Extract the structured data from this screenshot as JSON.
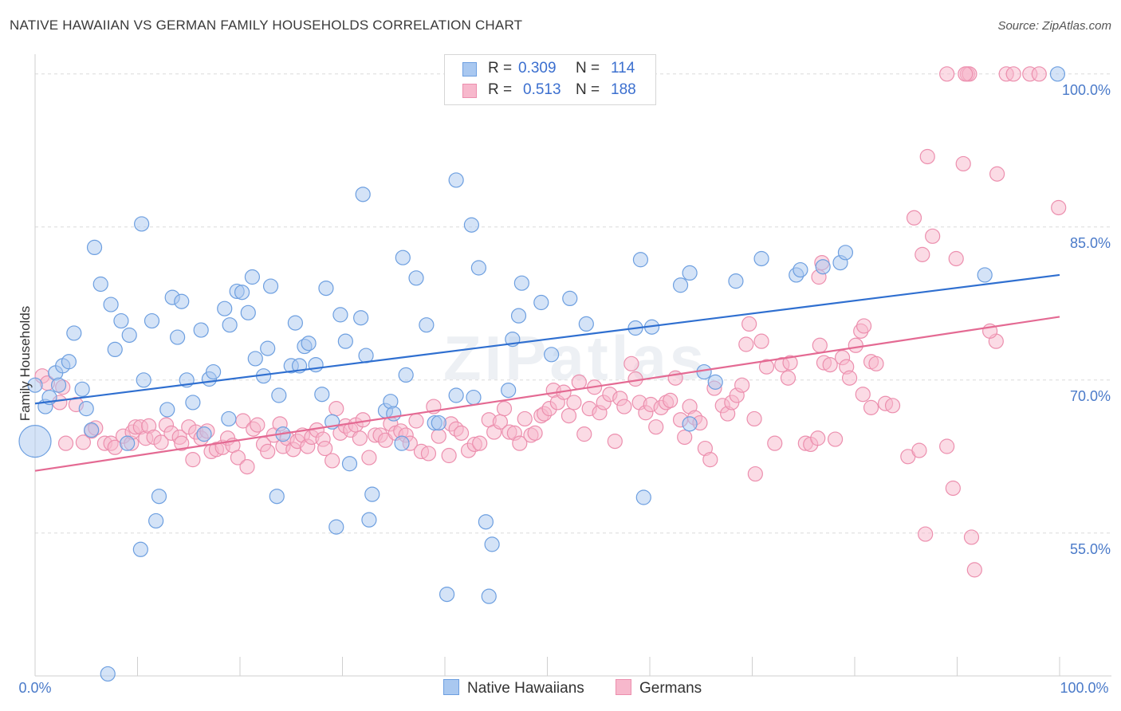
{
  "header": {
    "title": "NATIVE HAWAIIAN VS GERMAN FAMILY HOUSEHOLDS CORRELATION CHART",
    "source": "Source: ZipAtlas.com"
  },
  "watermark": "ZIPatlas",
  "legend": {
    "rows": [
      {
        "r_label": "R =",
        "r_value": "0.309",
        "n_label": "N =",
        "n_value": "114"
      },
      {
        "r_label": "R =",
        "r_value": "0.513",
        "n_label": "N =",
        "n_value": "188"
      }
    ]
  },
  "bottom_legend": {
    "items": [
      "Native Hawaiians",
      "Germans"
    ]
  },
  "colors": {
    "blue_fill": "#a9c8f0",
    "blue_stroke": "#6d9fe0",
    "blue_line": "#2f6fd0",
    "pink_fill": "#f7b8cc",
    "pink_stroke": "#ec8fae",
    "pink_line": "#e46a93",
    "tick": "#4a7ac9"
  },
  "chart_data": {
    "type": "scatter",
    "title": "NATIVE HAWAIIAN VS GERMAN FAMILY HOUSEHOLDS CORRELATION CHART",
    "xlabel": "",
    "ylabel": "Family Households",
    "xlim": [
      0,
      100
    ],
    "ylim": [
      41,
      101
    ],
    "x_tick_labels": [
      "0.0%",
      "100.0%"
    ],
    "y_ticks": [
      {
        "value": 55,
        "label": "55.0%"
      },
      {
        "value": 70,
        "label": "70.0%"
      },
      {
        "value": 85,
        "label": "85.0%"
      },
      {
        "value": 100,
        "label": "100.0%"
      }
    ],
    "grid": "horizontal dashed",
    "legend_position": "top-center",
    "series": [
      {
        "name": "Native Hawaiians",
        "R": 0.309,
        "N": 114,
        "trend": {
          "x0": 0,
          "y0": 67.7,
          "x1": 100,
          "y1": 80.3
        },
        "points": [
          [
            0,
            64
          ],
          [
            1,
            67.4
          ],
          [
            1.4,
            68.3
          ],
          [
            2,
            70.7
          ],
          [
            2.3,
            69.5
          ],
          [
            2.7,
            71.4
          ],
          [
            3.3,
            71.8
          ],
          [
            3.8,
            74.6
          ],
          [
            4.6,
            69.1
          ],
          [
            5,
            67.2
          ],
          [
            5.5,
            65.1
          ],
          [
            5.8,
            83
          ],
          [
            6.4,
            79.4
          ],
          [
            7.4,
            77.4
          ],
          [
            7.8,
            73
          ],
          [
            8.4,
            75.8
          ],
          [
            9,
            63.8
          ],
          [
            9.2,
            74.4
          ],
          [
            10.4,
            85.3
          ],
          [
            10.6,
            70
          ],
          [
            11.4,
            75.8
          ],
          [
            12.1,
            58.6
          ],
          [
            11.8,
            56.2
          ],
          [
            12.9,
            67.1
          ],
          [
            13.4,
            78.1
          ],
          [
            13.9,
            74.2
          ],
          [
            14.3,
            77.7
          ],
          [
            14.8,
            70
          ],
          [
            15.4,
            67.8
          ],
          [
            16.2,
            74.9
          ],
          [
            16.5,
            64.7
          ],
          [
            17,
            70.1
          ],
          [
            17.4,
            70.8
          ],
          [
            18.5,
            77
          ],
          [
            18.9,
            66.2
          ],
          [
            19,
            75.4
          ],
          [
            19.7,
            78.7
          ],
          [
            20.2,
            78.6
          ],
          [
            20.8,
            76.6
          ],
          [
            21.2,
            80.1
          ],
          [
            21.5,
            72.1
          ],
          [
            22.3,
            70.4
          ],
          [
            23,
            79.2
          ],
          [
            23.6,
            58.6
          ],
          [
            23.8,
            68.5
          ],
          [
            24.2,
            64.7
          ],
          [
            25,
            71.4
          ],
          [
            25.4,
            75.6
          ],
          [
            25.8,
            71.4
          ],
          [
            26.3,
            73.3
          ],
          [
            26.7,
            73.6
          ],
          [
            27.4,
            71.5
          ],
          [
            28,
            68.6
          ],
          [
            28.4,
            79
          ],
          [
            29,
            65.9
          ],
          [
            29.4,
            55.6
          ],
          [
            29.8,
            76.4
          ],
          [
            30.3,
            73.8
          ],
          [
            30.7,
            61.8
          ],
          [
            31.8,
            76.1
          ],
          [
            32,
            88.2
          ],
          [
            32.3,
            72.4
          ],
          [
            32.9,
            58.8
          ],
          [
            32.6,
            56.3
          ],
          [
            34.2,
            67
          ],
          [
            34.7,
            67.9
          ],
          [
            35,
            66.7
          ],
          [
            35.8,
            63.8
          ],
          [
            35.9,
            82
          ],
          [
            36.2,
            70.5
          ],
          [
            37.2,
            80
          ],
          [
            38.2,
            75.4
          ],
          [
            39,
            65.8
          ],
          [
            39.4,
            65.8
          ],
          [
            41.1,
            89.6
          ],
          [
            41.1,
            68.5
          ],
          [
            42.6,
            85.2
          ],
          [
            42.8,
            68.3
          ],
          [
            43.3,
            81
          ],
          [
            44,
            56.1
          ],
          [
            44.6,
            53.9
          ],
          [
            46.2,
            69
          ],
          [
            46.6,
            74
          ],
          [
            47.2,
            76.3
          ],
          [
            47.5,
            79.5
          ],
          [
            49.4,
            77.6
          ],
          [
            50.4,
            72.5
          ],
          [
            52.2,
            78
          ],
          [
            53.8,
            75.5
          ],
          [
            58.6,
            75.1
          ],
          [
            59.1,
            81.8
          ],
          [
            60.2,
            75.2
          ],
          [
            59.4,
            58.5
          ],
          [
            63,
            79.3
          ],
          [
            63.9,
            80.5
          ],
          [
            63.9,
            65.7
          ],
          [
            65.3,
            70.8
          ],
          [
            66.4,
            69.8
          ],
          [
            68.4,
            79.7
          ],
          [
            70.9,
            81.9
          ],
          [
            74.3,
            80.3
          ],
          [
            74.7,
            80.8
          ],
          [
            76.9,
            81.1
          ],
          [
            78.6,
            81.5
          ],
          [
            79.1,
            82.5
          ],
          [
            92.7,
            80.3
          ],
          [
            99.8,
            100
          ],
          [
            7.1,
            41.2
          ],
          [
            10.3,
            53.4
          ],
          [
            40.2,
            49
          ],
          [
            44.3,
            48.8
          ],
          [
            0,
            69.5
          ],
          [
            22.7,
            73.1
          ]
        ]
      },
      {
        "name": "Germans",
        "R": 0.513,
        "N": 188,
        "trend": {
          "x0": 0,
          "y0": 61.1,
          "x1": 100,
          "y1": 76.2
        },
        "points": [
          [
            0.7,
            70.4
          ],
          [
            1.2,
            69.7
          ],
          [
            2.4,
            67.8
          ],
          [
            2.7,
            69.3
          ],
          [
            3,
            63.8
          ],
          [
            4,
            67.6
          ],
          [
            4.7,
            63.9
          ],
          [
            5.5,
            65
          ],
          [
            5.9,
            65.3
          ],
          [
            6.8,
            63.8
          ],
          [
            7.4,
            63.8
          ],
          [
            7.8,
            63.4
          ],
          [
            8.6,
            64.5
          ],
          [
            9.4,
            63.8
          ],
          [
            9.5,
            64.9
          ],
          [
            9.8,
            65.4
          ],
          [
            10.3,
            65.4
          ],
          [
            10.8,
            64.3
          ],
          [
            11.1,
            65.5
          ],
          [
            11.6,
            64.4
          ],
          [
            12.3,
            63.9
          ],
          [
            12.8,
            65.6
          ],
          [
            13.3,
            64.8
          ],
          [
            14.1,
            64.4
          ],
          [
            14.3,
            63.8
          ],
          [
            15,
            65.4
          ],
          [
            15.4,
            62.2
          ],
          [
            15.7,
            64.9
          ],
          [
            16.2,
            64.3
          ],
          [
            16.8,
            65
          ],
          [
            17.2,
            63
          ],
          [
            17.7,
            63.2
          ],
          [
            18.3,
            63.4
          ],
          [
            18.8,
            64.3
          ],
          [
            19.3,
            63.6
          ],
          [
            19.8,
            62.4
          ],
          [
            20.3,
            66
          ],
          [
            20.7,
            61.5
          ],
          [
            21.3,
            65.2
          ],
          [
            21.7,
            65.6
          ],
          [
            22.3,
            63.7
          ],
          [
            22.7,
            63
          ],
          [
            23.3,
            64.6
          ],
          [
            23.9,
            65.7
          ],
          [
            24.2,
            63.5
          ],
          [
            24.6,
            64.3
          ],
          [
            25.2,
            63.2
          ],
          [
            25.6,
            64
          ],
          [
            26.1,
            64.6
          ],
          [
            26.6,
            63.5
          ],
          [
            27,
            64.4
          ],
          [
            27.5,
            65.1
          ],
          [
            28.1,
            64.2
          ],
          [
            28.3,
            63.3
          ],
          [
            29,
            62.1
          ],
          [
            29.4,
            67.2
          ],
          [
            29.8,
            64.8
          ],
          [
            30.3,
            65.5
          ],
          [
            30.8,
            65.1
          ],
          [
            31.3,
            65.6
          ],
          [
            31.7,
            64.3
          ],
          [
            32,
            66.1
          ],
          [
            32.6,
            62.4
          ],
          [
            33.2,
            64.6
          ],
          [
            33.7,
            64.6
          ],
          [
            34.2,
            64.1
          ],
          [
            34.7,
            65.7
          ],
          [
            35.2,
            64.8
          ],
          [
            35.7,
            65
          ],
          [
            36.2,
            64.6
          ],
          [
            36.6,
            63.8
          ],
          [
            37.2,
            66
          ],
          [
            37.7,
            63
          ],
          [
            38.4,
            62.8
          ],
          [
            38.9,
            67.4
          ],
          [
            39.4,
            64.5
          ],
          [
            40.4,
            62.6
          ],
          [
            40.6,
            65.7
          ],
          [
            41.1,
            65.2
          ],
          [
            41.6,
            64.8
          ],
          [
            42.3,
            63.1
          ],
          [
            42.9,
            63.7
          ],
          [
            43.4,
            63.8
          ],
          [
            44.3,
            66.1
          ],
          [
            44.8,
            64.9
          ],
          [
            45.4,
            65.9
          ],
          [
            45.8,
            67.2
          ],
          [
            46.3,
            64.9
          ],
          [
            46.8,
            64.8
          ],
          [
            47.3,
            63.8
          ],
          [
            47.8,
            66.2
          ],
          [
            48.4,
            64.6
          ],
          [
            48.8,
            64.8
          ],
          [
            49.4,
            66.5
          ],
          [
            49.7,
            66.7
          ],
          [
            50.2,
            67.2
          ],
          [
            50.6,
            69
          ],
          [
            51,
            67.8
          ],
          [
            51.6,
            68.8
          ],
          [
            52.1,
            66.5
          ],
          [
            52.6,
            67.8
          ],
          [
            53.1,
            69.8
          ],
          [
            53.6,
            64.7
          ],
          [
            54.1,
            67.2
          ],
          [
            54.6,
            69.3
          ],
          [
            55.1,
            66.8
          ],
          [
            55.5,
            67.8
          ],
          [
            56.1,
            68.6
          ],
          [
            56.6,
            64
          ],
          [
            57.1,
            68.2
          ],
          [
            57.5,
            67.4
          ],
          [
            58.2,
            71.6
          ],
          [
            58.6,
            70.1
          ],
          [
            59,
            67.8
          ],
          [
            59.6,
            66.8
          ],
          [
            60.1,
            67.6
          ],
          [
            60.6,
            65.4
          ],
          [
            61.1,
            67.3
          ],
          [
            61.6,
            67.8
          ],
          [
            62,
            68
          ],
          [
            62.5,
            70.2
          ],
          [
            63,
            66.1
          ],
          [
            63.4,
            64.4
          ],
          [
            63.9,
            67.4
          ],
          [
            64.4,
            66.3
          ],
          [
            64.9,
            65.8
          ],
          [
            65.4,
            63.3
          ],
          [
            65.9,
            62.2
          ],
          [
            66.3,
            69.2
          ],
          [
            67.1,
            67.5
          ],
          [
            67.6,
            66.7
          ],
          [
            68,
            67.8
          ],
          [
            68.5,
            68.5
          ],
          [
            69,
            69.5
          ],
          [
            69.4,
            73.5
          ],
          [
            70.2,
            66.2
          ],
          [
            70.3,
            60.8
          ],
          [
            70.9,
            73.8
          ],
          [
            71.4,
            71.3
          ],
          [
            72.2,
            63.8
          ],
          [
            72.9,
            71.5
          ],
          [
            73.5,
            70.2
          ],
          [
            73.7,
            71.7
          ],
          [
            75.2,
            63.8
          ],
          [
            75.7,
            63.7
          ],
          [
            76.4,
            64.3
          ],
          [
            76.6,
            73.4
          ],
          [
            77,
            71.7
          ],
          [
            77.6,
            71.5
          ],
          [
            78.1,
            64.2
          ],
          [
            78.8,
            72.2
          ],
          [
            79.2,
            71.3
          ],
          [
            79.5,
            70.2
          ],
          [
            80.1,
            73.4
          ],
          [
            80.6,
            74.8
          ],
          [
            80.9,
            75.3
          ],
          [
            81.6,
            71.8
          ],
          [
            82.1,
            71.6
          ],
          [
            83,
            67.7
          ],
          [
            83.7,
            67.5
          ],
          [
            85.2,
            62.5
          ],
          [
            86.3,
            63.1
          ],
          [
            86.9,
            54.9
          ],
          [
            89,
            63.5
          ],
          [
            89.6,
            59.4
          ],
          [
            89.9,
            81.9
          ],
          [
            90.6,
            91.2
          ],
          [
            91.7,
            51.4
          ],
          [
            91.4,
            54.6
          ],
          [
            93.8,
            73.8
          ],
          [
            93.2,
            74.8
          ],
          [
            93.9,
            90.2
          ],
          [
            91,
            100
          ],
          [
            94.8,
            100
          ],
          [
            95.5,
            100
          ],
          [
            97.1,
            100
          ],
          [
            98,
            100
          ],
          [
            99.9,
            86.9
          ],
          [
            89,
            100
          ],
          [
            87.1,
            91.9
          ],
          [
            85.8,
            85.9
          ],
          [
            86.6,
            82.3
          ],
          [
            87.6,
            84.1
          ],
          [
            76.8,
            81.5
          ],
          [
            76.5,
            80.1
          ],
          [
            91.2,
            100
          ],
          [
            90.8,
            100
          ],
          [
            69.7,
            75.5
          ],
          [
            80.8,
            68.6
          ],
          [
            81.6,
            67.3
          ]
        ]
      }
    ]
  }
}
